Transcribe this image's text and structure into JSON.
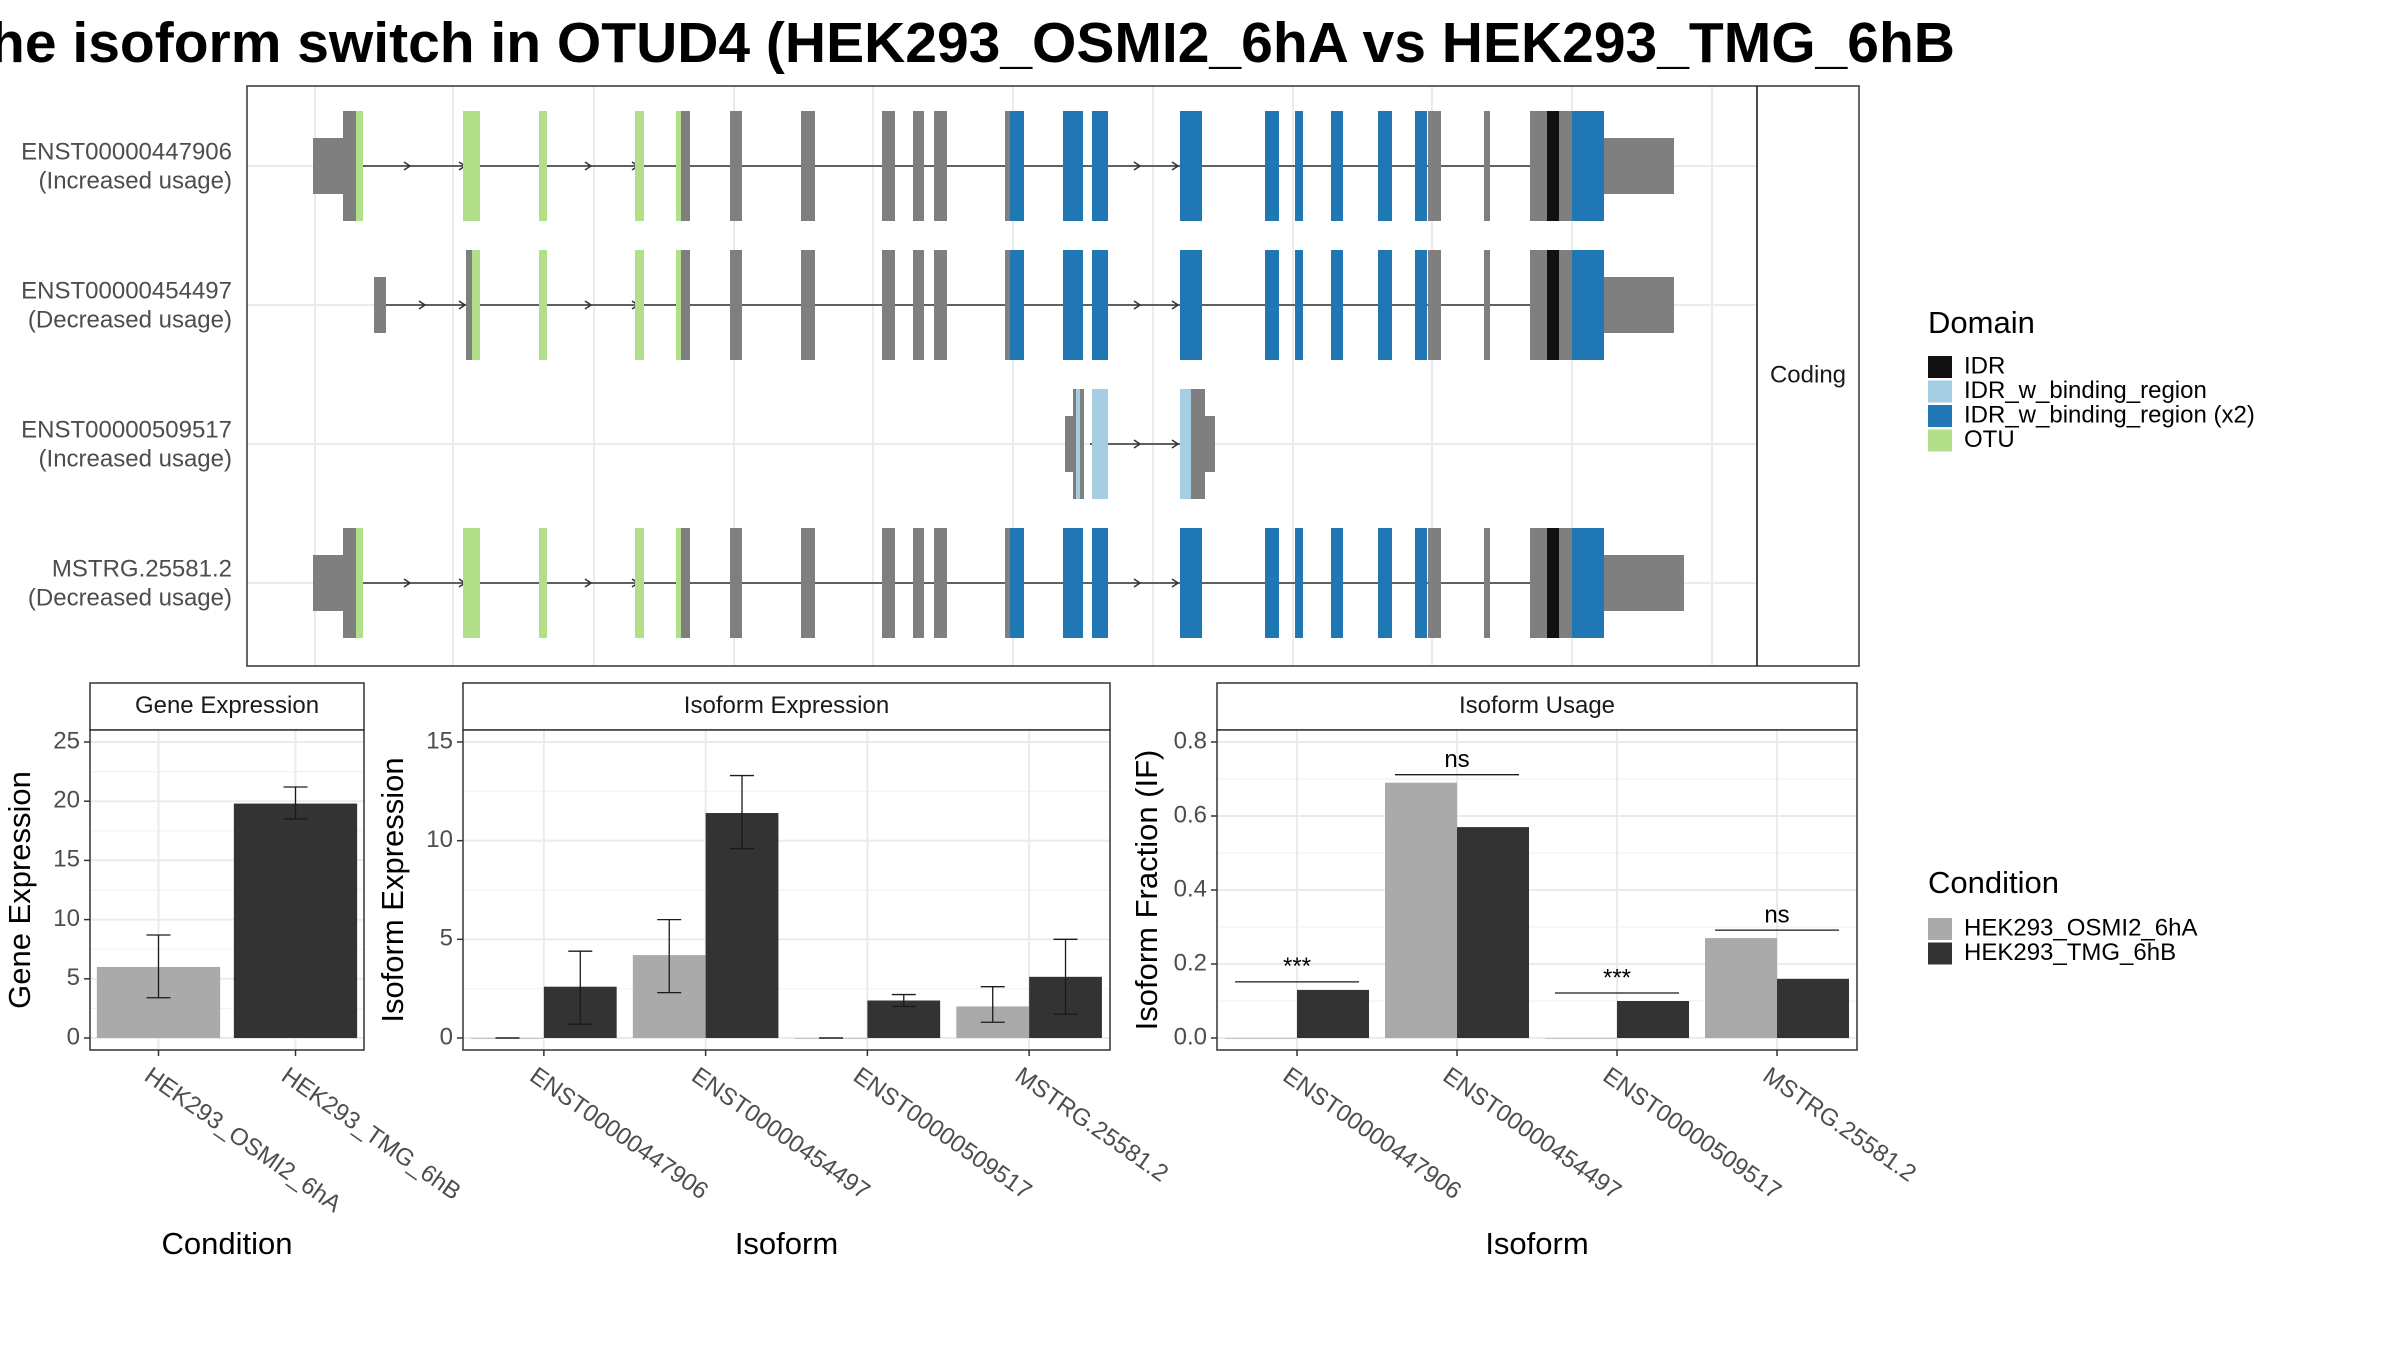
{
  "title": "he isoform switch in OTUD4 (HEK293_OSMI2_6hA vs HEK293_TMG_6hB",
  "colors": {
    "IDR": "#111111",
    "IDR_w_binding_region": "#a6cee3",
    "IDR_w_binding_region_x2": "#1f78b4",
    "OTU": "#b2df8a",
    "exon": "#7f7f7f",
    "cond_A": "#aaaaaa",
    "cond_B": "#333333"
  },
  "transcripts": {
    "strip_label": "Coding",
    "items": [
      {
        "id": "ENST00000447906",
        "usage": "(Increased usage)"
      },
      {
        "id": "ENST00000454497",
        "usage": "(Decreased usage)"
      },
      {
        "id": "ENST00000509517",
        "usage": "(Increased usage)"
      },
      {
        "id": "MSTRG.25581.2",
        "usage": "(Decreased usage)"
      }
    ]
  },
  "legend_domain": {
    "title": "Domain",
    "items": [
      {
        "label": "IDR",
        "color_key": "IDR"
      },
      {
        "label": "IDR_w_binding_region",
        "color_key": "IDR_w_binding_region"
      },
      {
        "label": "IDR_w_binding_region (x2)",
        "color_key": "IDR_w_binding_region_x2"
      },
      {
        "label": "OTU",
        "color_key": "OTU"
      }
    ]
  },
  "legend_condition": {
    "title": "Condition",
    "items": [
      {
        "label": "HEK293_OSMI2_6hA",
        "color_key": "cond_A"
      },
      {
        "label": "HEK293_TMG_6hB",
        "color_key": "cond_B"
      }
    ]
  },
  "chart_data": [
    {
      "type": "bar",
      "title": "Gene Expression",
      "xlabel": "Condition",
      "ylabel": "Gene Expression",
      "ylim": [
        0,
        25
      ],
      "yticks": [
        0,
        5,
        10,
        15,
        20,
        25
      ],
      "categories": [
        "HEK293_OSMI2_6hA",
        "HEK293_TMG_6hB"
      ],
      "values": [
        6.0,
        19.8
      ],
      "error_low": [
        3.4,
        18.5
      ],
      "error_high": [
        8.7,
        21.2
      ]
    },
    {
      "type": "bar",
      "title": "Isoform Expression",
      "xlabel": "Isoform",
      "ylabel": "Isoform Expression",
      "ylim": [
        0,
        15
      ],
      "yticks": [
        0,
        5,
        10,
        15
      ],
      "categories": [
        "ENST00000447906",
        "ENST00000454497",
        "ENST00000509517",
        "MSTRG.25581.2"
      ],
      "series": [
        {
          "name": "HEK293_OSMI2_6hA",
          "values": [
            0.0,
            4.2,
            0.0,
            1.6
          ],
          "error_low": [
            0.0,
            2.3,
            0.0,
            0.8
          ],
          "error_high": [
            0.0,
            6.0,
            0.0,
            2.6
          ]
        },
        {
          "name": "HEK293_TMG_6hB",
          "values": [
            2.6,
            11.4,
            1.9,
            3.1
          ],
          "error_low": [
            0.7,
            9.6,
            1.6,
            1.2
          ],
          "error_high": [
            4.4,
            13.3,
            2.2,
            5.0
          ]
        }
      ]
    },
    {
      "type": "bar",
      "title": "Isoform Usage",
      "xlabel": "Isoform",
      "ylabel": "Isoform Fraction (IF)",
      "ylim": [
        0,
        0.8
      ],
      "yticks": [
        0.0,
        0.2,
        0.4,
        0.6,
        0.8
      ],
      "categories": [
        "ENST00000447906",
        "ENST00000454497",
        "ENST00000509517",
        "MSTRG.25581.2"
      ],
      "series": [
        {
          "name": "HEK293_OSMI2_6hA",
          "values": [
            0.0,
            0.69,
            0.0,
            0.27
          ]
        },
        {
          "name": "HEK293_TMG_6hB",
          "values": [
            0.13,
            0.57,
            0.1,
            0.16
          ]
        }
      ],
      "significance": [
        "***",
        "ns",
        "***",
        "ns"
      ]
    }
  ]
}
